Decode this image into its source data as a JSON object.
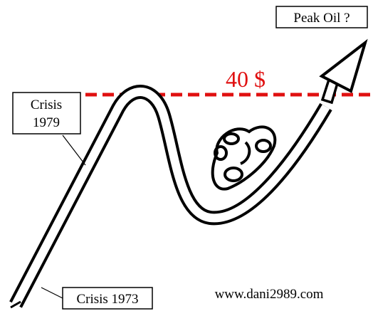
{
  "peak_label": "Peak Oil ?",
  "price_label": "40 $",
  "crisis_1979": {
    "lines": [
      "Crisis",
      "1979"
    ]
  },
  "crisis_1973": "Crisis 1973",
  "website": "www.dani2989.com"
}
